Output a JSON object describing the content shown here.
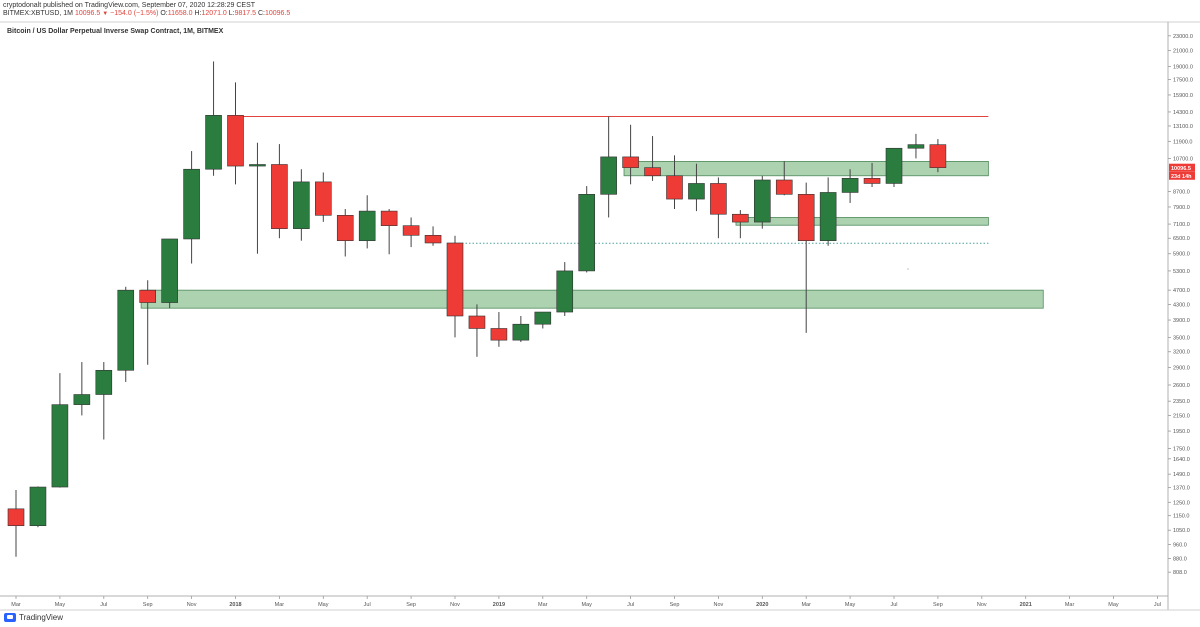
{
  "header": {
    "line1": "cryptodonalt published on TradingView.com, September 07, 2020 12:28:29 CEST",
    "symbol": "BITMEX:XBTUSD, 1M",
    "last": "10096.5",
    "change": "−154.0 (−1.5%)",
    "o_label": "O:",
    "o_val": "11658.0",
    "h_label": "H:",
    "h_val": "12071.0",
    "l_label": "L:",
    "l_val": "9817.5",
    "c_label": "C:",
    "c_val": "10096.5"
  },
  "chart_title": "Bitcoin / US Dollar Perpetual Inverse Swap Contract, 1M, BITMEX",
  "footer": {
    "brand": "TradingView"
  },
  "colors": {
    "up": "#2a7d3f",
    "down": "#ef3b36",
    "zone_fill": "#9ecaa2",
    "zone_stroke": "#4f8a5a",
    "resistance": "#e0443c",
    "dotted": "#4aa39a",
    "price_tag": "#ef3b36",
    "axis_text": "#555555"
  },
  "chart_data": {
    "type": "candlestick",
    "scale": "log",
    "ylim": [
      760,
      24000
    ],
    "y_ticks": [
      {
        "v": 23000,
        "label": "23000.0"
      },
      {
        "v": 21000,
        "label": "21000.0"
      },
      {
        "v": 19000,
        "label": "19000.0"
      },
      {
        "v": 17500,
        "label": "17500.0"
      },
      {
        "v": 15900,
        "label": "15900.0"
      },
      {
        "v": 14300,
        "label": "14300.0"
      },
      {
        "v": 13100,
        "label": "13100.0"
      },
      {
        "v": 11900,
        "label": "11900.0"
      },
      {
        "v": 10700,
        "label": "10700.0"
      },
      {
        "v": 8700,
        "label": "8700.0"
      },
      {
        "v": 7900,
        "label": "7900.0"
      },
      {
        "v": 7100,
        "label": "7100.0"
      },
      {
        "v": 6500,
        "label": "6500.0"
      },
      {
        "v": 5900,
        "label": "5900.0"
      },
      {
        "v": 5300,
        "label": "5300.0"
      },
      {
        "v": 4700,
        "label": "4700.0"
      },
      {
        "v": 4300,
        "label": "4300.0"
      },
      {
        "v": 3900,
        "label": "3900.0"
      },
      {
        "v": 3500,
        "label": "3500.0"
      },
      {
        "v": 3200,
        "label": "3200.0"
      },
      {
        "v": 2900,
        "label": "2900.0"
      },
      {
        "v": 2600,
        "label": "2600.0"
      },
      {
        "v": 2350,
        "label": "2350.0"
      },
      {
        "v": 2150,
        "label": "2150.0"
      },
      {
        "v": 1950,
        "label": "1950.0"
      },
      {
        "v": 1750,
        "label": "1750.0"
      },
      {
        "v": 1640,
        "label": "1640.0"
      },
      {
        "v": 1490,
        "label": "1490.0"
      },
      {
        "v": 1370,
        "label": "1370.0"
      },
      {
        "v": 1250,
        "label": "1250.0"
      },
      {
        "v": 1150,
        "label": "1150.0"
      },
      {
        "v": 1050,
        "label": "1050.0"
      },
      {
        "v": 960,
        "label": "960.0"
      },
      {
        "v": 880,
        "label": "880.0"
      },
      {
        "v": 808,
        "label": "808.0"
      }
    ],
    "price_tags": [
      {
        "v": 10096.5,
        "label": "10096.5"
      },
      {
        "v": 9600,
        "label": "23d 14h"
      }
    ],
    "x_ticks": [
      {
        "i": 0,
        "label": "Mar",
        "bold": false
      },
      {
        "i": 2,
        "label": "May",
        "bold": false
      },
      {
        "i": 4,
        "label": "Jul",
        "bold": false
      },
      {
        "i": 6,
        "label": "Sep",
        "bold": false
      },
      {
        "i": 8,
        "label": "Nov",
        "bold": false
      },
      {
        "i": 10,
        "label": "2018",
        "bold": true
      },
      {
        "i": 12,
        "label": "Mar",
        "bold": false
      },
      {
        "i": 14,
        "label": "May",
        "bold": false
      },
      {
        "i": 16,
        "label": "Jul",
        "bold": false
      },
      {
        "i": 18,
        "label": "Sep",
        "bold": false
      },
      {
        "i": 20,
        "label": "Nov",
        "bold": false
      },
      {
        "i": 22,
        "label": "2019",
        "bold": true
      },
      {
        "i": 24,
        "label": "Mar",
        "bold": false
      },
      {
        "i": 26,
        "label": "May",
        "bold": false
      },
      {
        "i": 28,
        "label": "Jul",
        "bold": false
      },
      {
        "i": 30,
        "label": "Sep",
        "bold": false
      },
      {
        "i": 32,
        "label": "Nov",
        "bold": false
      },
      {
        "i": 34,
        "label": "2020",
        "bold": true
      },
      {
        "i": 36,
        "label": "Mar",
        "bold": false
      },
      {
        "i": 38,
        "label": "May",
        "bold": false
      },
      {
        "i": 40,
        "label": "Jul",
        "bold": false
      },
      {
        "i": 42,
        "label": "Sep",
        "bold": false
      },
      {
        "i": 44,
        "label": "Nov",
        "bold": false
      },
      {
        "i": 46,
        "label": "2021",
        "bold": true
      },
      {
        "i": 48,
        "label": "Mar",
        "bold": false
      },
      {
        "i": 50,
        "label": "May",
        "bold": false
      },
      {
        "i": 52,
        "label": "Jul",
        "bold": false
      }
    ],
    "candles": [
      {
        "o": 1200,
        "h": 1350,
        "l": 890,
        "c": 1080
      },
      {
        "o": 1080,
        "h": 1380,
        "l": 1070,
        "c": 1375
      },
      {
        "o": 1375,
        "h": 2800,
        "l": 1370,
        "c": 2300
      },
      {
        "o": 2300,
        "h": 3000,
        "l": 2150,
        "c": 2450
      },
      {
        "o": 2450,
        "h": 3000,
        "l": 1850,
        "c": 2850
      },
      {
        "o": 2850,
        "h": 4800,
        "l": 2650,
        "c": 4700
      },
      {
        "o": 4700,
        "h": 5000,
        "l": 2950,
        "c": 4350
      },
      {
        "o": 4350,
        "h": 6470,
        "l": 4200,
        "c": 6470
      },
      {
        "o": 6470,
        "h": 11200,
        "l": 5550,
        "c": 10000
      },
      {
        "o": 10000,
        "h": 19600,
        "l": 9600,
        "c": 14000
      },
      {
        "o": 14000,
        "h": 17200,
        "l": 9100,
        "c": 10200
      },
      {
        "o": 10200,
        "h": 11800,
        "l": 5900,
        "c": 10300
      },
      {
        "o": 10300,
        "h": 11700,
        "l": 6500,
        "c": 6900
      },
      {
        "o": 6900,
        "h": 10000,
        "l": 6400,
        "c": 9240
      },
      {
        "o": 9240,
        "h": 9800,
        "l": 7200,
        "c": 7500
      },
      {
        "o": 7500,
        "h": 7800,
        "l": 5800,
        "c": 6400
      },
      {
        "o": 6400,
        "h": 8500,
        "l": 6100,
        "c": 7700
      },
      {
        "o": 7700,
        "h": 7800,
        "l": 5880,
        "c": 7030
      },
      {
        "o": 7030,
        "h": 7400,
        "l": 6150,
        "c": 6620
      },
      {
        "o": 6620,
        "h": 7000,
        "l": 6200,
        "c": 6310
      },
      {
        "o": 6310,
        "h": 6600,
        "l": 3500,
        "c": 4000
      },
      {
        "o": 4000,
        "h": 4300,
        "l": 3100,
        "c": 3700
      },
      {
        "o": 3700,
        "h": 4100,
        "l": 3300,
        "c": 3440
      },
      {
        "o": 3440,
        "h": 4000,
        "l": 3400,
        "c": 3800
      },
      {
        "o": 3800,
        "h": 4100,
        "l": 3700,
        "c": 4100
      },
      {
        "o": 4100,
        "h": 5600,
        "l": 4000,
        "c": 5300
      },
      {
        "o": 5300,
        "h": 9000,
        "l": 5250,
        "c": 8550
      },
      {
        "o": 8550,
        "h": 13900,
        "l": 7400,
        "c": 10800
      },
      {
        "o": 10800,
        "h": 13200,
        "l": 9100,
        "c": 10100
      },
      {
        "o": 10100,
        "h": 12300,
        "l": 9300,
        "c": 9600
      },
      {
        "o": 9600,
        "h": 10900,
        "l": 7800,
        "c": 8300
      },
      {
        "o": 8300,
        "h": 10350,
        "l": 7700,
        "c": 9150
      },
      {
        "o": 9150,
        "h": 9500,
        "l": 6500,
        "c": 7550
      },
      {
        "o": 7550,
        "h": 7750,
        "l": 6500,
        "c": 7190
      },
      {
        "o": 7190,
        "h": 9600,
        "l": 6900,
        "c": 9350
      },
      {
        "o": 9350,
        "h": 10500,
        "l": 8500,
        "c": 8550
      },
      {
        "o": 8550,
        "h": 9200,
        "l": 3600,
        "c": 6400
      },
      {
        "o": 6400,
        "h": 9500,
        "l": 6200,
        "c": 8650
      },
      {
        "o": 8650,
        "h": 10000,
        "l": 8100,
        "c": 9450
      },
      {
        "o": 9450,
        "h": 10400,
        "l": 8950,
        "c": 9150
      },
      {
        "o": 9150,
        "h": 11400,
        "l": 8950,
        "c": 11400
      },
      {
        "o": 11400,
        "h": 12470,
        "l": 10700,
        "c": 11660
      },
      {
        "o": 11658,
        "h": 12071,
        "l": 9817.5,
        "c": 10096.5
      }
    ],
    "zones": [
      {
        "i_start": 5.7,
        "i_end": 46.8,
        "top": 4700,
        "bottom": 4200
      },
      {
        "i_start": 27.7,
        "i_end": 44.3,
        "top": 10500,
        "bottom": 9600
      },
      {
        "i_start": 32.8,
        "i_end": 44.3,
        "top": 7400,
        "bottom": 7050
      }
    ],
    "resistance_line": {
      "v": 13900,
      "i_start": 10,
      "i_end": 44.3
    },
    "dotted_line": {
      "v": 6300,
      "i_start": 20,
      "i_end": 44.3
    }
  }
}
